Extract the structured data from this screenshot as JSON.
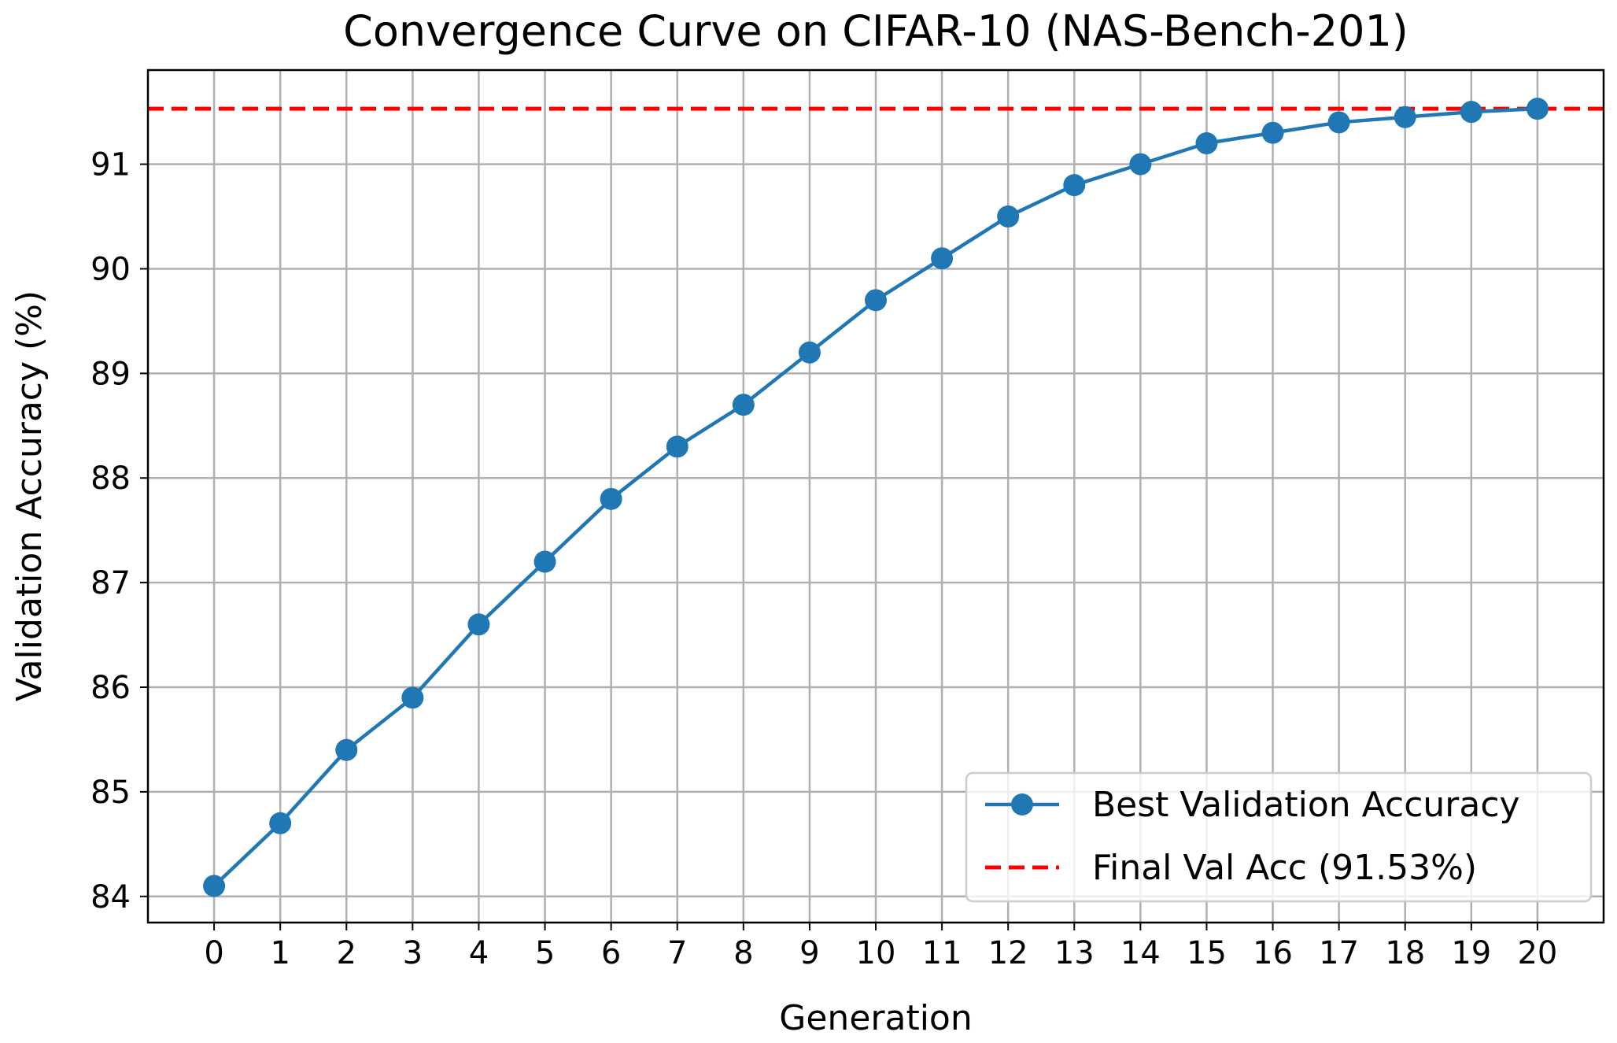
{
  "chart_data": {
    "type": "line",
    "title": "Convergence Curve on CIFAR-10 (NAS-Bench-201)",
    "xlabel": "Generation",
    "ylabel": "Validation Accuracy (%)",
    "x": [
      0,
      1,
      2,
      3,
      4,
      5,
      6,
      7,
      8,
      9,
      10,
      11,
      12,
      13,
      14,
      15,
      16,
      17,
      18,
      19,
      20
    ],
    "x_tick_labels": [
      "0",
      "1",
      "2",
      "3",
      "4",
      "5",
      "6",
      "7",
      "8",
      "9",
      "10",
      "11",
      "12",
      "13",
      "14",
      "15",
      "16",
      "17",
      "18",
      "19",
      "20"
    ],
    "y_ticks": [
      84,
      85,
      86,
      87,
      88,
      89,
      90,
      91
    ],
    "y_tick_labels": [
      "84",
      "85",
      "86",
      "87",
      "88",
      "89",
      "90",
      "91"
    ],
    "xlim": [
      -1,
      21
    ],
    "ylim": [
      83.75,
      91.9
    ],
    "grid": true,
    "legend_position": "lower-right",
    "series": [
      {
        "name": "Best Validation Accuracy",
        "style": "line-with-markers",
        "color": "#1f77b4",
        "values": [
          84.1,
          84.7,
          85.4,
          85.9,
          86.6,
          87.2,
          87.8,
          88.3,
          88.7,
          89.2,
          89.7,
          90.1,
          90.5,
          90.8,
          91.0,
          91.2,
          91.3,
          91.4,
          91.45,
          91.5,
          91.53
        ]
      }
    ],
    "reference_lines": [
      {
        "name": "Final Val Acc (91.53%)",
        "orientation": "horizontal",
        "value": 91.53,
        "style": "dashed",
        "color": "#ff0000"
      }
    ]
  }
}
